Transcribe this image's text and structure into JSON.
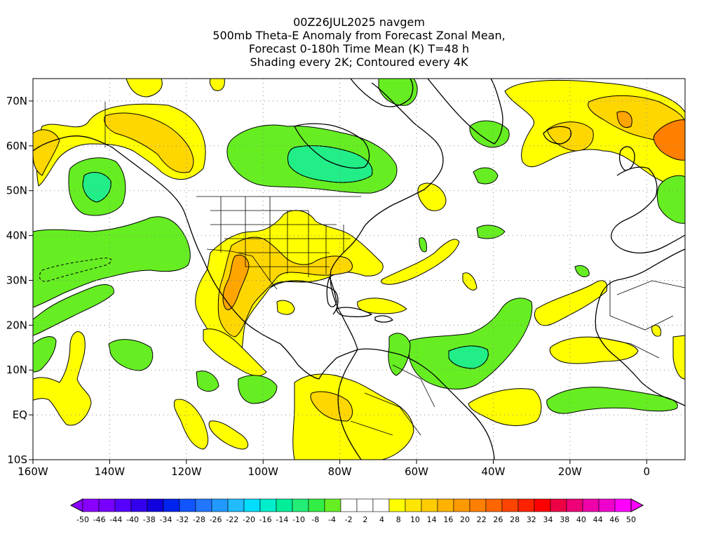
{
  "title": {
    "line1": "00Z26JUL2025 navgem",
    "line2": "500mb Theta-E Anomaly from Forecast Zonal Mean,",
    "line3": "Forecast 0-180h Time Mean (K) T=48 h",
    "line4": "Shading every 2K; Contoured every 4K"
  },
  "map": {
    "lon_range": [
      -160,
      10
    ],
    "lat_range": [
      -10,
      75
    ],
    "x_ticks": [
      {
        "lon": -160,
        "label": "160W"
      },
      {
        "lon": -140,
        "label": "140W"
      },
      {
        "lon": -120,
        "label": "120W"
      },
      {
        "lon": -100,
        "label": "100W"
      },
      {
        "lon": -80,
        "label": "80W"
      },
      {
        "lon": -60,
        "label": "60W"
      },
      {
        "lon": -40,
        "label": "40W"
      },
      {
        "lon": -20,
        "label": "20W"
      },
      {
        "lon": 0,
        "label": "0"
      }
    ],
    "y_ticks": [
      {
        "lat": -10,
        "label": "10S"
      },
      {
        "lat": 0,
        "label": "EQ"
      },
      {
        "lat": 10,
        "label": "10N"
      },
      {
        "lat": 20,
        "label": "20N"
      },
      {
        "lat": 30,
        "label": "30N"
      },
      {
        "lat": 40,
        "label": "40N"
      },
      {
        "lat": 50,
        "label": "50N"
      },
      {
        "lat": 60,
        "label": "60N"
      },
      {
        "lat": 70,
        "label": "70N"
      }
    ],
    "gridlines": "dotted",
    "colors": {
      "yellow": "#ffff00",
      "gold": "#ffd700",
      "orange": "#ffa500",
      "darkorange": "#ff7f00",
      "green": "#66ee22",
      "teal": "#22ee88",
      "coast": "#000000"
    }
  },
  "colorbar": {
    "labels": [
      "-50",
      "-46",
      "-44",
      "-40",
      "-38",
      "-34",
      "-32",
      "-28",
      "-26",
      "-22",
      "-20",
      "-16",
      "-14",
      "-10",
      "-8",
      "-4",
      "-2",
      "2",
      "4",
      "8",
      "10",
      "14",
      "16",
      "20",
      "22",
      "26",
      "28",
      "32",
      "34",
      "38",
      "40",
      "44",
      "46",
      "50"
    ],
    "colors": [
      "#8800ff",
      "#7700ff",
      "#5500ff",
      "#3300ee",
      "#1100dd",
      "#0022ee",
      "#1155ff",
      "#2277ff",
      "#2299ff",
      "#22bbff",
      "#00ddff",
      "#00eecc",
      "#00ee99",
      "#22ee77",
      "#33ee44",
      "#66ee22",
      "#ffffff",
      "#ffffff",
      "#ffffff",
      "#ffff00",
      "#ffe600",
      "#ffcc00",
      "#ffb300",
      "#ff9900",
      "#ff7f00",
      "#ff6600",
      "#ff4400",
      "#ff2200",
      "#ff0000",
      "#ee0044",
      "#ee0077",
      "#ee00aa",
      "#ee00cc",
      "#ff00ff"
    ]
  }
}
